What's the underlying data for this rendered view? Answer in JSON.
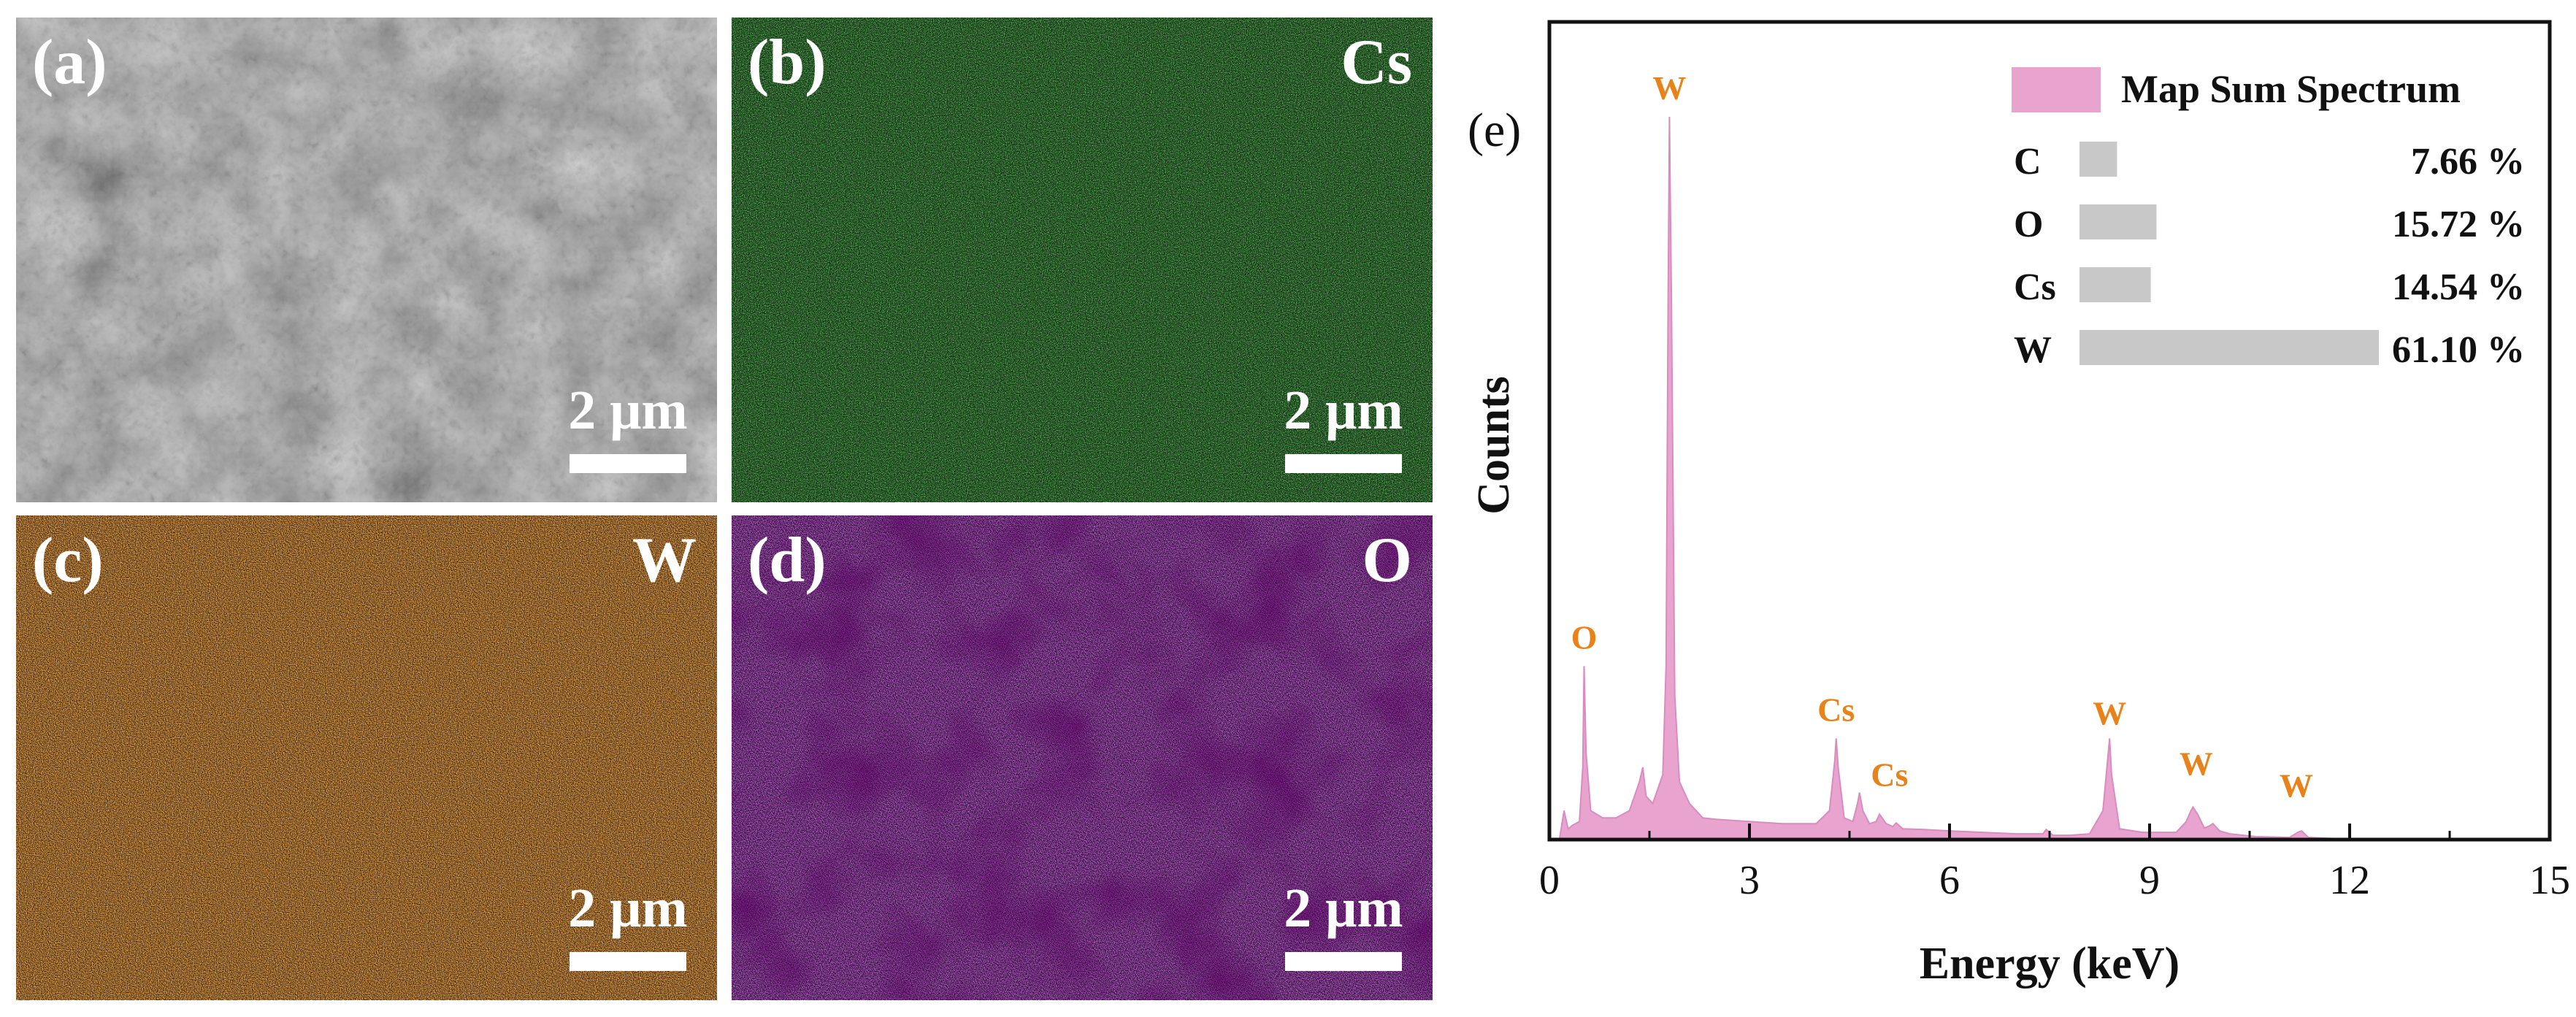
{
  "panels": {
    "a": {
      "label": "(a)",
      "element": "",
      "scale": "2 μm",
      "color": "#7a7a7a"
    },
    "b": {
      "label": "(b)",
      "element": "Cs",
      "scale": "2 μm",
      "color": "#2fb52f"
    },
    "c": {
      "label": "(c)",
      "element": "W",
      "scale": "2 μm",
      "color": "#e0761c"
    },
    "d": {
      "label": "(d)",
      "element": "O",
      "scale": "2 μm",
      "color": "#b22ad4"
    }
  },
  "chart_data": {
    "type": "area",
    "panel_label": "(e)",
    "xlabel": "Energy (keV)",
    "ylabel": "Counts",
    "xlim": [
      0,
      15
    ],
    "ylim": [
      0,
      100
    ],
    "xticks": [
      0,
      3,
      6,
      9,
      12,
      15
    ],
    "fill_color": "#e8a3cf",
    "legend": {
      "label": "Map Sum Spectrum",
      "position": "top-right"
    },
    "composition": [
      {
        "element": "C",
        "percent": 7.66,
        "label": "7.66 %"
      },
      {
        "element": "O",
        "percent": 15.72,
        "label": "15.72 %"
      },
      {
        "element": "Cs",
        "percent": 14.54,
        "label": "14.54 %"
      },
      {
        "element": "W",
        "percent": 61.1,
        "label": "61.10 %"
      }
    ],
    "peak_labels": [
      {
        "text": "W",
        "x": 1.8,
        "y": 100
      },
      {
        "text": "O",
        "x": 0.52,
        "y": 24
      },
      {
        "text": "Cs",
        "x": 4.3,
        "y": 14
      },
      {
        "text": "Cs",
        "x": 5.1,
        "y": 5
      },
      {
        "text": "W",
        "x": 8.4,
        "y": 13.5
      },
      {
        "text": "W",
        "x": 9.7,
        "y": 6.5
      },
      {
        "text": "W",
        "x": 11.2,
        "y": 3.5
      }
    ],
    "series": [
      {
        "name": "Map Sum Spectrum",
        "x": [
          0,
          0.15,
          0.22,
          0.28,
          0.35,
          0.45,
          0.5,
          0.52,
          0.55,
          0.62,
          0.8,
          1.0,
          1.2,
          1.35,
          1.4,
          1.45,
          1.55,
          1.7,
          1.75,
          1.78,
          1.8,
          1.83,
          1.88,
          1.95,
          2.1,
          2.3,
          2.5,
          3.0,
          3.5,
          4.0,
          4.2,
          4.28,
          4.3,
          4.33,
          4.42,
          4.55,
          4.62,
          4.65,
          4.7,
          4.8,
          4.9,
          4.95,
          5.05,
          5.15,
          5.2,
          5.3,
          5.6,
          6.0,
          6.5,
          7.0,
          7.4,
          7.45,
          7.55,
          7.8,
          8.1,
          8.3,
          8.38,
          8.4,
          8.43,
          8.55,
          8.9,
          9.4,
          9.55,
          9.62,
          9.65,
          9.72,
          9.82,
          9.9,
          9.95,
          10.05,
          10.2,
          10.6,
          11.1,
          11.22,
          11.28,
          11.38,
          11.6,
          12.2,
          12.4
        ],
        "y": [
          0,
          0,
          4,
          1.5,
          2,
          2.5,
          10,
          24,
          12,
          4,
          3,
          3,
          4,
          8,
          10,
          6,
          5,
          9,
          24,
          75,
          100,
          75,
          20,
          8,
          5,
          3,
          2.8,
          2.5,
          2.2,
          2.2,
          4,
          11,
          14,
          10,
          3,
          2.5,
          5,
          6.5,
          4,
          2.2,
          2.5,
          3.5,
          2.2,
          1.8,
          2.3,
          1.5,
          1.4,
          1.2,
          1,
          0.8,
          0.8,
          1.4,
          0.6,
          0.6,
          0.8,
          4,
          12,
          14,
          9,
          1.5,
          1,
          1,
          2.5,
          4,
          4.5,
          3.5,
          1.6,
          1.9,
          2.2,
          1.2,
          0.8,
          0.4,
          0.3,
          1,
          1.2,
          0.3,
          0.2,
          0,
          0
        ]
      }
    ]
  }
}
